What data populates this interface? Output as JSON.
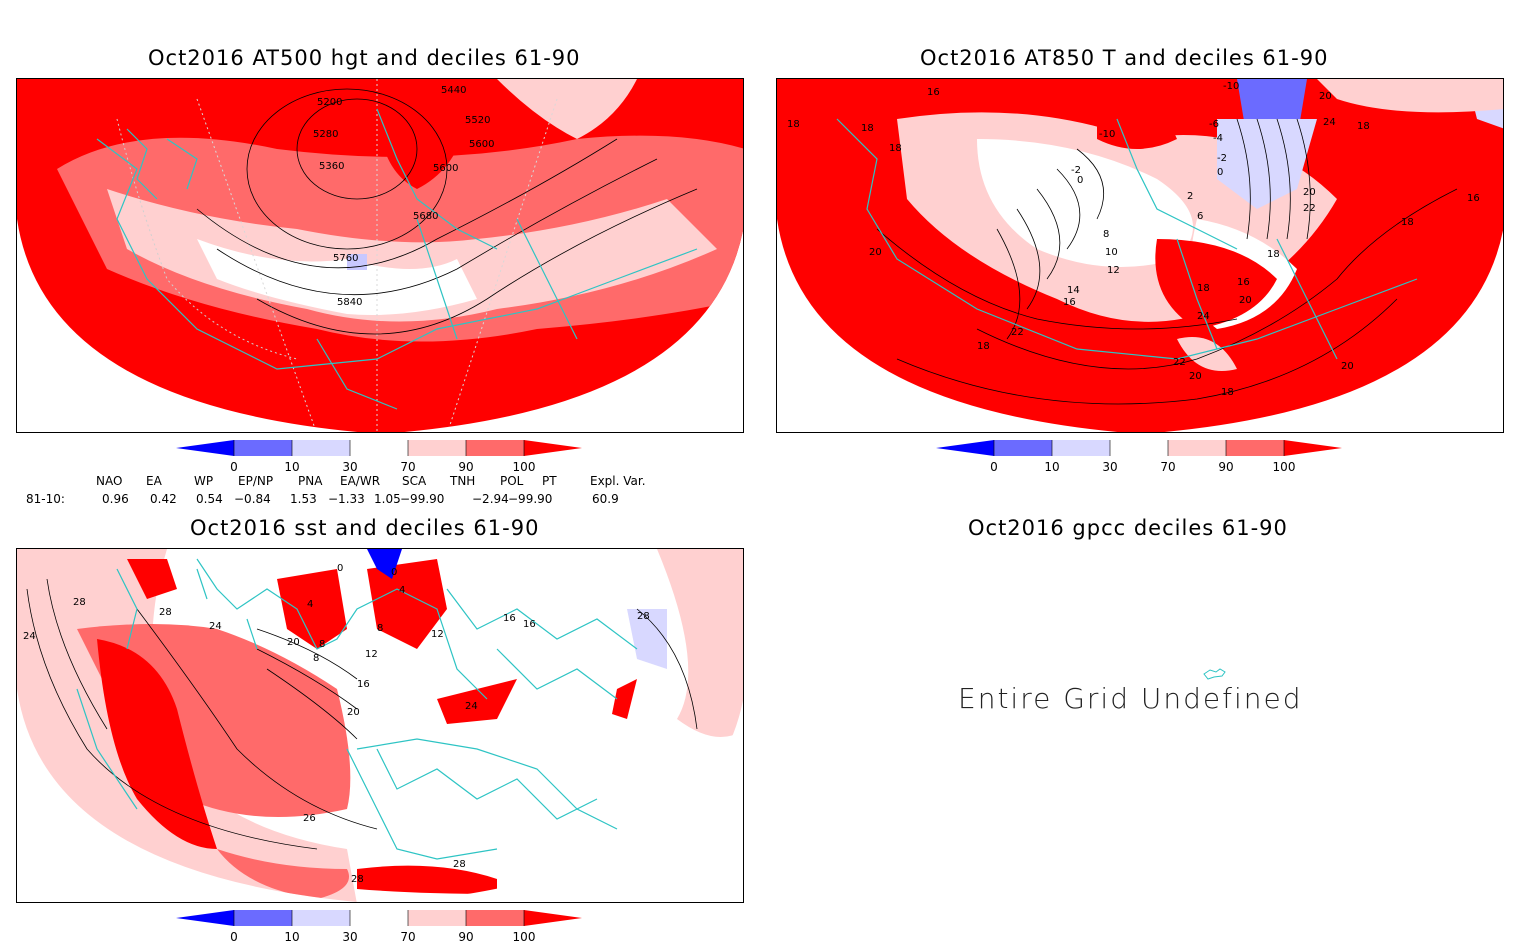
{
  "panels": [
    {
      "id": "p1",
      "title": "Oct2016 AT500 hgt and deciles 61-90",
      "contour_labels": [
        "5200",
        "5280",
        "5360",
        "5440",
        "5520",
        "5600",
        "5600",
        "5680",
        "5760",
        "5840"
      ]
    },
    {
      "id": "p2",
      "title": "Oct2016 AT850 T and deciles 61-90",
      "contour_labels": [
        "16",
        "18",
        "18",
        "20",
        "-10",
        "-10",
        "-6",
        "-4",
        "-2",
        "-2",
        "0",
        "0",
        "2",
        "6",
        "8",
        "10",
        "12",
        "14",
        "16",
        "18",
        "16",
        "18",
        "20",
        "22",
        "24",
        "22",
        "24",
        "20",
        "22",
        "18",
        "18",
        "20",
        "20",
        "18",
        "18",
        "16",
        "18",
        "20"
      ]
    },
    {
      "id": "p3",
      "title": "Oct2016 sst and deciles 61-90",
      "contour_labels": [
        "28",
        "24",
        "28",
        "24",
        "0",
        "0",
        "4",
        "4",
        "8",
        "8",
        "8",
        "12",
        "12",
        "16",
        "16",
        "20",
        "24",
        "28",
        "28",
        "28",
        "26",
        "16",
        "20"
      ]
    },
    {
      "id": "p4",
      "title": "Oct2016 gpcc deciles 61-90",
      "message": "Entire Grid Undefined"
    }
  ],
  "colorbar": {
    "ticks": [
      "0",
      "10",
      "30",
      "70",
      "90",
      "100"
    ],
    "colors": [
      "#0000ff",
      "#6b6bff",
      "#d8d8ff",
      "#ffffff",
      "#ffd0d0",
      "#ff6a6a",
      "#ff0000"
    ]
  },
  "indices": {
    "headers": [
      "NAO",
      "EA",
      "WP",
      "EP/NP",
      "PNA",
      "EA/WR",
      "SCA",
      "TNH",
      "POL",
      "PT",
      "Expl. Var."
    ],
    "row_label": "81-10:",
    "values": [
      "0.96",
      "0.42",
      "0.54",
      "−0.84",
      "1.53",
      "−1.33",
      "1.05",
      "−99.90",
      "−2.94",
      "−99.90",
      "60.9"
    ]
  },
  "style": {
    "coastline": "#2ec4c4",
    "deep_red": "#ff0000",
    "mid_red": "#ff6a6a",
    "light_red": "#ffd0d0",
    "light_blue": "#d8d8ff",
    "mid_blue": "#6b6bff"
  }
}
